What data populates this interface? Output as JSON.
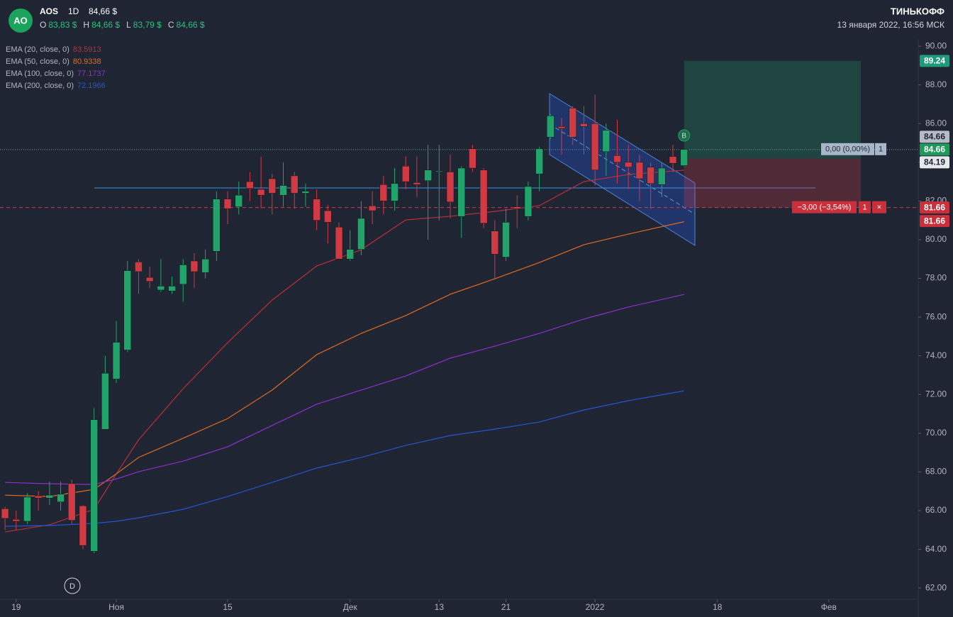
{
  "chart_data": {
    "type": "candlestick",
    "header": {
      "logo": "AO",
      "symbol": "AOS",
      "interval": "1D",
      "price": "84,66 $",
      "ohlc": [
        {
          "label": "O",
          "value": "83,83 $"
        },
        {
          "label": "H",
          "value": "84,66 $"
        },
        {
          "label": "L",
          "value": "83,79 $"
        },
        {
          "label": "C",
          "value": "84,66 $"
        }
      ],
      "brand": "ТИНЬКОФФ",
      "datetime": "13 января 2022, 16:56 МСК"
    },
    "up_color": "#22a36b",
    "down_color": "#cf3a45",
    "open": [
      66.1,
      65.55,
      65.45,
      66.75,
      66.65,
      66.45,
      67.4,
      66.25,
      63.9,
      70.2,
      72.8,
      74.3,
      78.85,
      78.05,
      77.4,
      77.35,
      77.7,
      78.9,
      78.3,
      79.4,
      82.1,
      81.7,
      83.0,
      82.6,
      83.15,
      82.3,
      83.3,
      82.4,
      82.1,
      81.5,
      80.65,
      79.0,
      79.5,
      81.75,
      82.85,
      82.0,
      83.8,
      82.95,
      83.05,
      83.5,
      83.5,
      81.2,
      84.7,
      83.6,
      80.45,
      79.1,
      81.7,
      81.2,
      83.4,
      85.3,
      85.85,
      86.8,
      86.0,
      86.0,
      84.55,
      84.35,
      84.0,
      84.0,
      83.75,
      82.85,
      84.3,
      83.83
    ],
    "high": [
      66.2,
      66.0,
      66.9,
      67.0,
      67.5,
      67.5,
      67.6,
      66.3,
      71.3,
      74.0,
      75.8,
      78.9,
      79.0,
      78.6,
      79.0,
      78.1,
      79.0,
      79.3,
      79.5,
      82.5,
      82.5,
      83.0,
      83.5,
      84.3,
      83.4,
      84.0,
      83.5,
      82.9,
      82.6,
      81.8,
      80.9,
      80.5,
      82.0,
      82.5,
      83.3,
      83.7,
      84.3,
      84.3,
      84.9,
      84.9,
      84.4,
      83.8,
      84.9,
      83.7,
      81.0,
      81.6,
      82.3,
      83.0,
      84.8,
      86.5,
      86.3,
      86.9,
      86.9,
      87.5,
      86.0,
      86.2,
      84.9,
      84.4,
      84.0,
      84.0,
      84.9,
      84.66
    ],
    "low": [
      65.0,
      65.0,
      65.3,
      66.0,
      66.3,
      66.0,
      65.3,
      64.0,
      63.8,
      70.2,
      72.6,
      74.2,
      77.2,
      77.5,
      77.3,
      77.2,
      76.8,
      77.5,
      78.0,
      78.9,
      80.8,
      81.3,
      82.0,
      81.6,
      81.3,
      81.7,
      81.6,
      81.7,
      80.5,
      79.8,
      79.0,
      78.9,
      79.2,
      80.8,
      81.3,
      81.5,
      82.6,
      82.2,
      80.0,
      81.0,
      81.1,
      80.1,
      83.5,
      80.6,
      78.0,
      78.9,
      80.6,
      81.0,
      82.5,
      85.2,
      84.4,
      84.9,
      84.4,
      82.8,
      83.3,
      82.9,
      82.6,
      82.0,
      81.6,
      82.2,
      83.5,
      83.79
    ],
    "close": [
      65.6,
      65.45,
      66.7,
      66.65,
      66.8,
      66.85,
      65.5,
      64.2,
      70.7,
      73.1,
      74.7,
      78.4,
      78.35,
      77.85,
      77.6,
      77.6,
      78.7,
      78.35,
      79.0,
      82.1,
      81.6,
      82.3,
      82.65,
      82.3,
      82.4,
      82.8,
      82.4,
      82.5,
      81.0,
      80.9,
      79.0,
      79.5,
      81.1,
      81.5,
      82.0,
      82.9,
      83.0,
      82.85,
      83.6,
      83.55,
      81.95,
      83.7,
      83.7,
      80.85,
      79.25,
      80.9,
      81.6,
      82.75,
      84.7,
      86.4,
      85.75,
      85.3,
      85.85,
      83.6,
      85.65,
      84.0,
      83.75,
      83.15,
      82.9,
      83.7,
      83.95,
      84.66
    ],
    "indicators": [
      {
        "name": "EMA (20, close, 0)",
        "value": 83.5913,
        "color": "#b8303a",
        "x": [
          0,
          4,
          8,
          10,
          12,
          16,
          20,
          24,
          28,
          32,
          36,
          40,
          44,
          48,
          52,
          56,
          61
        ],
        "values": [
          64.9,
          65.27,
          66.07,
          67.9,
          69.66,
          72.3,
          74.68,
          76.88,
          78.64,
          79.48,
          81.02,
          81.21,
          81.46,
          81.76,
          83.0,
          83.37,
          83.59
        ]
      },
      {
        "name": "EMA (50, close, 0)",
        "value": 80.9338,
        "color": "#e46a1e",
        "x": [
          0,
          4,
          8,
          10,
          12,
          16,
          20,
          24,
          28,
          32,
          36,
          40,
          44,
          48,
          52,
          56,
          61
        ],
        "values": [
          66.8,
          66.73,
          67.1,
          67.9,
          68.75,
          69.74,
          70.76,
          72.23,
          74.06,
          75.16,
          76.08,
          77.18,
          77.98,
          78.82,
          79.74,
          80.29,
          80.93
        ]
      },
      {
        "name": "EMA (100, close, 0)",
        "value": 77.1737,
        "color": "#8f2fd0",
        "x": [
          0,
          4,
          8,
          10,
          12,
          16,
          20,
          24,
          28,
          32,
          36,
          40,
          44,
          48,
          52,
          56,
          61
        ],
        "values": [
          67.46,
          67.39,
          67.35,
          67.64,
          68.01,
          68.56,
          69.3,
          70.4,
          71.5,
          72.23,
          72.96,
          73.88,
          74.5,
          75.16,
          75.9,
          76.52,
          77.17
        ]
      },
      {
        "name": "EMA (200, close, 0)",
        "value": 72.1966,
        "color": "#2456d0",
        "x": [
          0,
          4,
          8,
          10,
          12,
          16,
          20,
          24,
          28,
          32,
          36,
          40,
          44,
          48,
          52,
          56,
          61
        ],
        "values": [
          65.19,
          65.23,
          65.34,
          65.45,
          65.63,
          66.07,
          66.73,
          67.46,
          68.2,
          68.75,
          69.37,
          69.88,
          70.21,
          70.58,
          71.2,
          71.68,
          72.19
        ]
      }
    ],
    "xlim": [
      -0.45,
      82.04
    ],
    "xticks": [
      {
        "value": 1,
        "label": "19"
      },
      {
        "value": 10,
        "label": "Ноя"
      },
      {
        "value": 20,
        "label": "15"
      },
      {
        "value": 31,
        "label": "Дек"
      },
      {
        "value": 39,
        "label": "13"
      },
      {
        "value": 45,
        "label": "21"
      },
      {
        "value": 53,
        "label": "2022"
      },
      {
        "value": 64,
        "label": "18"
      },
      {
        "value": 74,
        "label": "Фев"
      }
    ],
    "ylim": [
      61.42,
      90.37
    ],
    "yticks": [
      {
        "value": 90,
        "label": "90.00"
      },
      {
        "value": 88,
        "label": "88.00"
      },
      {
        "value": 86,
        "label": "86.00"
      },
      {
        "value": 84,
        "label": "84.00"
      },
      {
        "value": 82,
        "label": "82.00"
      },
      {
        "value": 80,
        "label": "80.00"
      },
      {
        "value": 78,
        "label": "78.00"
      },
      {
        "value": 76,
        "label": "76.00"
      },
      {
        "value": 74,
        "label": "74.00"
      },
      {
        "value": 72,
        "label": "72.00"
      },
      {
        "value": 70,
        "label": "70.00"
      },
      {
        "value": 68,
        "label": "68.00"
      },
      {
        "value": 66,
        "label": "66.00"
      },
      {
        "value": 64,
        "label": "64.00"
      },
      {
        "value": 62,
        "label": "62.00"
      }
    ],
    "grid": false,
    "last_price": 84.66,
    "position": {
      "entry": 84.19,
      "target": 89.24,
      "stop": 81.66,
      "profit_label": "0,00 (0,00%)",
      "stop_label": "−3,00 (−3,54%)",
      "quantity": "1",
      "close_icon": "×"
    },
    "markers": {
      "buy": "B",
      "dividend": "D"
    }
  }
}
